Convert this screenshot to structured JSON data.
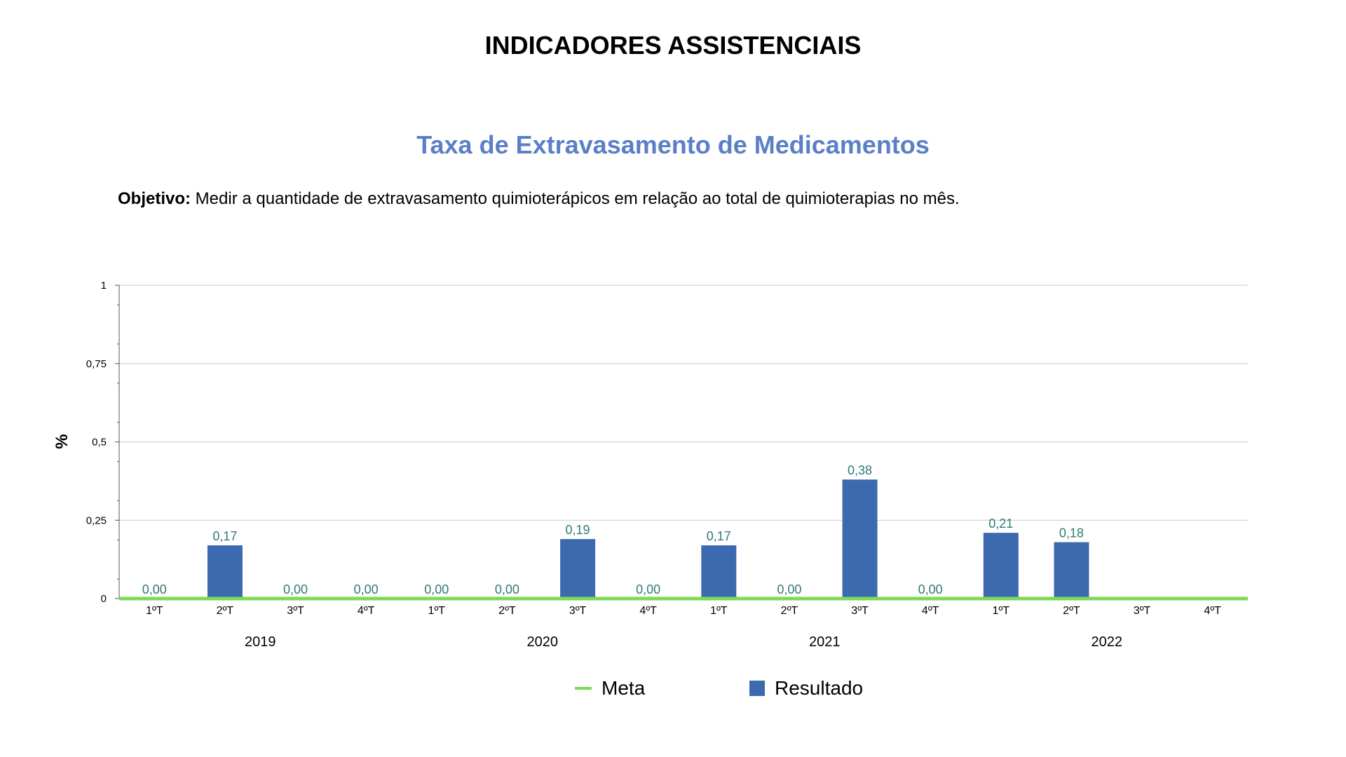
{
  "header": {
    "title": "INDICADORES ASSISTENCIAIS"
  },
  "objective": {
    "label": "Objetivo:",
    "text": " Medir a quantidade de extravasamento quimioterápicos em relação ao total de quimioterapias no mês."
  },
  "chart_data": {
    "type": "bar",
    "title": "Taxa de Extravasamento de Medicamentos",
    "ylabel": "%",
    "xlabel": "",
    "ylim": [
      0,
      1
    ],
    "yticks": [
      "0",
      "0,25",
      "0,5",
      "0,75",
      "1"
    ],
    "grid": true,
    "legend_position": "bottom",
    "categories": [
      "1ºT",
      "2ºT",
      "3ºT",
      "4ºT",
      "1ºT",
      "2ºT",
      "3ºT",
      "4ºT",
      "1ºT",
      "2ºT",
      "3ºT",
      "4ºT",
      "1ºT",
      "2ºT",
      "3ºT",
      "4ºT"
    ],
    "groups": [
      "2019",
      "2020",
      "2021",
      "2022"
    ],
    "series": [
      {
        "name": "Resultado",
        "kind": "bar",
        "color": "#3d6aaf",
        "values": [
          0,
          0.17,
          0,
          0,
          0,
          0,
          0.19,
          0,
          0.17,
          0,
          0.38,
          0,
          0.21,
          0.18,
          null,
          null
        ],
        "labels": [
          "0,00",
          "0,17",
          "0,00",
          "0,00",
          "0,00",
          "0,00",
          "0,19",
          "0,00",
          "0,17",
          "0,00",
          "0,38",
          "0,00",
          "0,21",
          "0,18",
          "",
          ""
        ]
      },
      {
        "name": "Meta",
        "kind": "line",
        "color": "#7ed957",
        "values": [
          0,
          0,
          0,
          0,
          0,
          0,
          0,
          0,
          0,
          0,
          0,
          0,
          0,
          0,
          0,
          0
        ]
      }
    ]
  },
  "legend": {
    "meta": "Meta",
    "resultado": "Resultado"
  }
}
